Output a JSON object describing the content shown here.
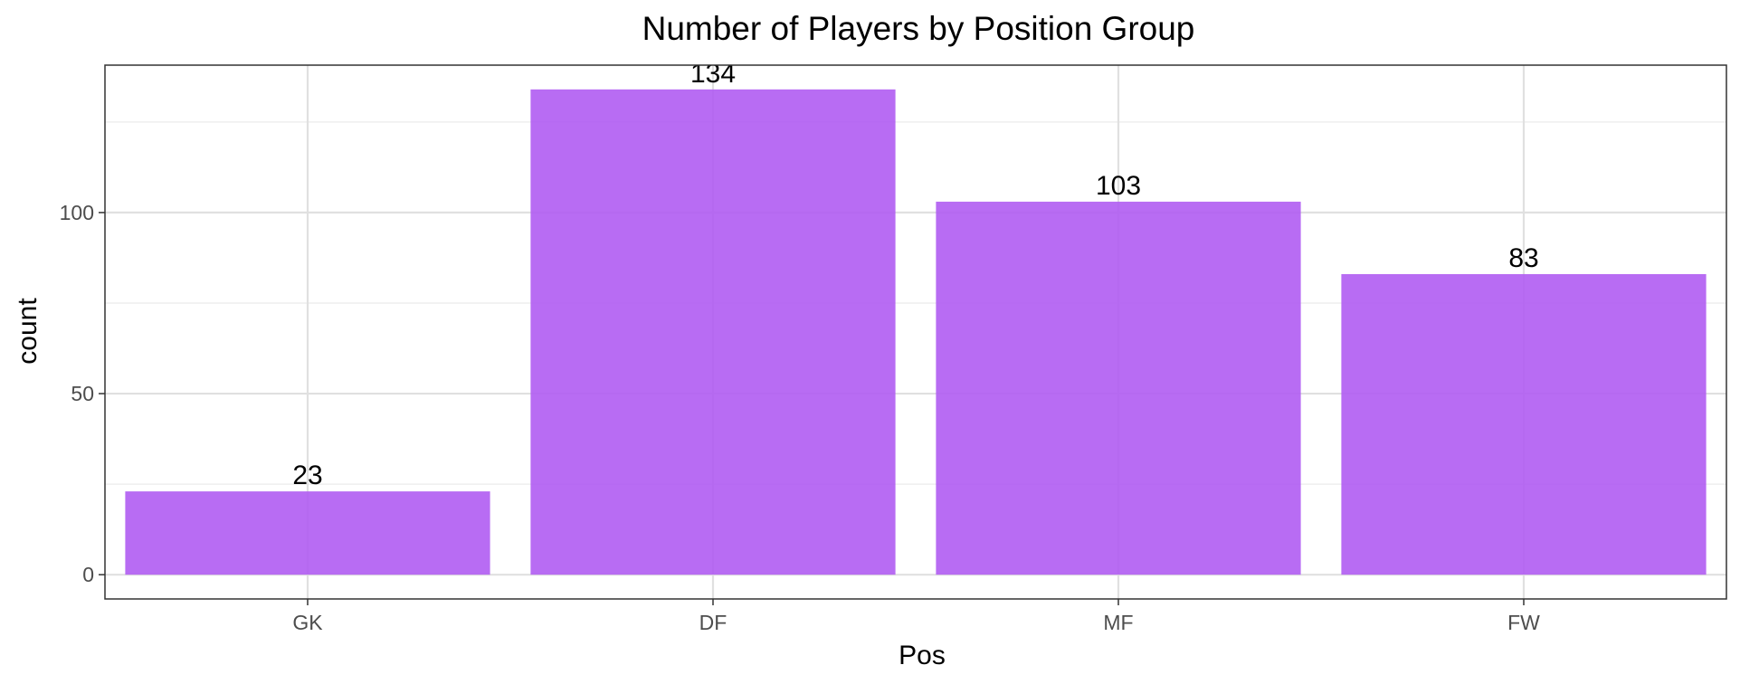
{
  "chart_data": {
    "type": "bar",
    "title": "Number of Players by Position Group",
    "xlabel": "Pos",
    "ylabel": "count",
    "categories": [
      "GK",
      "DF",
      "MF",
      "FW"
    ],
    "values": [
      23,
      134,
      103,
      83
    ],
    "data_labels": [
      "23",
      "134",
      "103",
      "83"
    ],
    "ylim": [
      -6.7,
      140.7
    ],
    "yticks": [
      0,
      50,
      100
    ],
    "grid": true,
    "bar_color": "#b05cf2",
    "bar_opacity": 0.9
  }
}
